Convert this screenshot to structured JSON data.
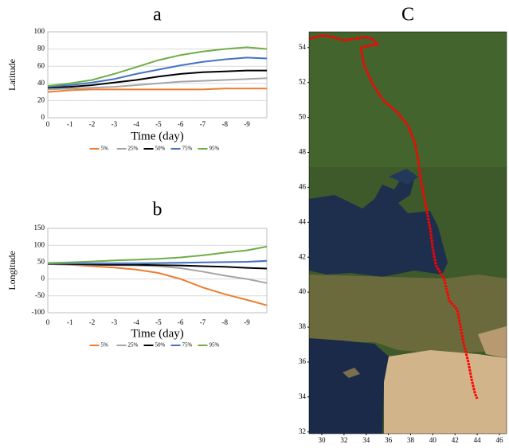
{
  "chart_data": [
    {
      "type": "line",
      "title": "a",
      "xlabel": "Time (day)",
      "ylabel": "Latitude",
      "x": [
        0,
        -1,
        -2,
        -3,
        -4,
        -5,
        -6,
        -7,
        -8,
        -9,
        -9.9
      ],
      "xlim": [
        0,
        -9.9
      ],
      "xticks": [
        0,
        -1,
        -2,
        -3,
        -4,
        -5,
        -6,
        -7,
        -8,
        -9
      ],
      "ylim": [
        0,
        100
      ],
      "yticks": [
        0,
        20,
        40,
        60,
        80,
        100
      ],
      "grid": true,
      "series": [
        {
          "name": "5%",
          "color": "#ed7d31",
          "values": [
            30,
            32,
            33,
            33,
            33,
            33,
            33,
            33,
            34,
            34,
            34
          ]
        },
        {
          "name": "25%",
          "color": "#a5a5a5",
          "values": [
            33,
            34,
            35,
            36,
            38,
            40,
            42,
            43,
            44,
            45,
            46
          ]
        },
        {
          "name": "50%",
          "color": "#000000",
          "values": [
            35,
            36,
            38,
            41,
            44,
            48,
            51,
            53,
            54,
            55,
            55
          ]
        },
        {
          "name": "75%",
          "color": "#4472c4",
          "values": [
            36,
            38,
            41,
            45,
            51,
            56,
            61,
            65,
            68,
            70,
            69
          ]
        },
        {
          "name": "95%",
          "color": "#70ad47",
          "values": [
            37,
            40,
            44,
            51,
            59,
            67,
            73,
            77,
            80,
            82,
            80
          ]
        }
      ]
    },
    {
      "type": "line",
      "title": "b",
      "xlabel": "Time (day)",
      "ylabel": "Longitude",
      "x": [
        0,
        -1,
        -2,
        -3,
        -4,
        -5,
        -6,
        -7,
        -8,
        -9,
        -9.9
      ],
      "xlim": [
        0,
        -9.9
      ],
      "xticks": [
        0,
        -1,
        -2,
        -3,
        -4,
        -5,
        -6,
        -7,
        -8,
        -9
      ],
      "ylim": [
        -100,
        150
      ],
      "yticks": [
        -100,
        -50,
        0,
        50,
        100,
        150
      ],
      "grid": true,
      "series": [
        {
          "name": "5%",
          "color": "#ed7d31",
          "values": [
            44,
            42,
            38,
            34,
            28,
            18,
            0,
            -25,
            -45,
            -62,
            -78
          ]
        },
        {
          "name": "25%",
          "color": "#a5a5a5",
          "values": [
            44,
            43,
            42,
            41,
            40,
            38,
            32,
            22,
            10,
            0,
            -12
          ]
        },
        {
          "name": "50%",
          "color": "#000000",
          "values": [
            45,
            44,
            43,
            42,
            42,
            41,
            40,
            38,
            36,
            33,
            31
          ]
        },
        {
          "name": "75%",
          "color": "#4472c4",
          "values": [
            46,
            46,
            46,
            46,
            46,
            47,
            48,
            49,
            50,
            51,
            54
          ]
        },
        {
          "name": "95%",
          "color": "#70ad47",
          "values": [
            47,
            49,
            52,
            55,
            57,
            60,
            64,
            70,
            78,
            85,
            96
          ]
        }
      ]
    },
    {
      "type": "map",
      "title": "C",
      "x": [
        28.9,
        30,
        31,
        32,
        33,
        34,
        34.5,
        35,
        33.5,
        33.8,
        34.5,
        35.5,
        36.8,
        37.8,
        38.4,
        38.7,
        38.9,
        39.2,
        39.5,
        39.8,
        40,
        40.3,
        41,
        41.3,
        41.5,
        42.2,
        42.5,
        42.8,
        43.2,
        43.5,
        43.8,
        44
      ],
      "values": [
        54.5,
        54.7,
        54.6,
        54.4,
        54.5,
        54.6,
        54.5,
        54.2,
        54,
        53,
        52,
        51,
        50.3,
        49.5,
        48.5,
        47.5,
        46.5,
        45.5,
        44.5,
        43.5,
        42.5,
        41.5,
        40.8,
        40,
        39.5,
        39,
        38,
        37,
        36,
        35,
        34.2,
        33.9
      ],
      "color": "#ff0000",
      "xlim": [
        28.85,
        46.65
      ],
      "xticks": [
        30,
        32,
        34,
        36,
        38,
        40,
        42,
        44,
        46
      ],
      "ylim": [
        31.9,
        54.9
      ],
      "yticks": [
        32,
        34,
        36,
        38,
        40,
        42,
        44,
        46,
        48,
        50,
        52,
        54
      ]
    }
  ]
}
